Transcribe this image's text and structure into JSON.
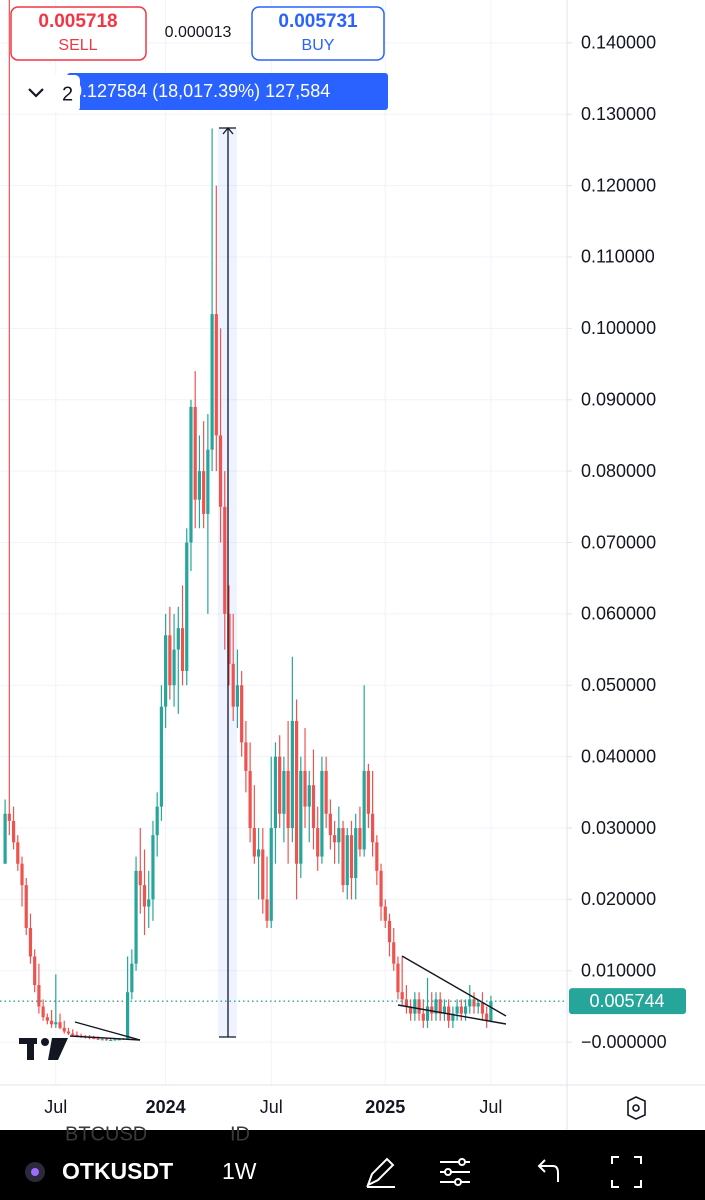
{
  "header": {
    "sell_price": "0.005718",
    "sell_label": "SELL",
    "spread": "0.000013",
    "buy_price": "0.005731",
    "buy_label": "BUY"
  },
  "measure": {
    "dropdown": "2",
    "text": "0.127584 (18,017.39%) 127,584"
  },
  "chart_data": {
    "type": "candlestick",
    "categories": [
      null,
      null,
      null,
      null,
      null,
      null,
      null,
      null,
      null,
      null,
      null,
      null,
      "Jul",
      null,
      null,
      null,
      null,
      null,
      null,
      null,
      null,
      null,
      null,
      null,
      null,
      null,
      null,
      null,
      null,
      null,
      null,
      null,
      null,
      null,
      null,
      null,
      null,
      null,
      "2024",
      null,
      null,
      null,
      null,
      null,
      null,
      null,
      null,
      null,
      null,
      null,
      null,
      null,
      null,
      null,
      null,
      null,
      null,
      null,
      null,
      null,
      null,
      null,
      null,
      "Jul",
      null,
      null,
      null,
      null,
      null,
      null,
      null,
      null,
      null,
      null,
      null,
      null,
      null,
      null,
      null,
      null,
      null,
      null,
      null,
      null,
      null,
      null,
      null,
      null,
      null,
      null,
      "2025",
      null,
      null,
      null,
      null,
      null,
      null,
      null,
      null,
      null,
      null,
      null,
      null,
      null,
      null,
      null,
      null,
      null,
      null,
      null,
      null,
      null,
      null,
      null,
      null,
      "Jul"
    ],
    "open": [
      0.025,
      0.032,
      0.031,
      0.028,
      0.025,
      0.022,
      0.016,
      0.012,
      0.008,
      0.005,
      0.0035,
      0.003,
      0.0025,
      0.0028,
      0.002,
      0.0015,
      0.0012,
      0.001,
      0.0009,
      0.0008,
      0.0007,
      0.0006,
      0.0005,
      0.0004,
      0.0004,
      0.0003,
      0.0003,
      0.0004,
      0.0004,
      0.0005,
      0.007,
      0.011,
      0.024,
      0.022,
      0.019,
      0.02,
      0.029,
      0.033,
      0.047,
      0.057,
      0.05,
      0.055,
      0.058,
      0.052,
      0.07,
      0.089,
      0.076,
      0.08,
      0.074,
      0.083,
      0.102,
      0.085,
      0.075,
      0.06,
      0.053,
      0.047,
      0.05,
      0.042,
      0.038,
      0.03,
      0.026,
      0.027,
      0.02,
      0.017,
      0.03,
      0.04,
      0.032,
      0.038,
      0.03,
      0.045,
      0.025,
      0.038,
      0.033,
      0.036,
      0.03,
      0.026,
      0.038,
      0.032,
      0.029,
      0.028,
      0.03,
      0.022,
      0.029,
      0.023,
      0.03,
      0.027,
      0.038,
      0.032,
      0.028,
      0.024,
      0.019,
      0.017,
      0.014,
      0.011,
      0.007,
      0.006,
      0.005,
      0.004,
      0.006,
      0.004,
      0.003,
      0.005,
      0.004,
      0.006,
      0.004,
      0.005,
      0.003,
      0.004,
      0.005,
      0.004,
      0.005,
      0.006,
      0.005,
      0.0055,
      0.004,
      0.003
    ],
    "high": [
      0.034,
      0.15,
      0.033,
      0.029,
      0.026,
      0.023,
      0.018,
      0.013,
      0.011,
      0.006,
      0.004,
      0.0045,
      0.0095,
      0.004,
      0.003,
      0.002,
      0.0018,
      0.0015,
      0.0012,
      0.001,
      0.001,
      0.0009,
      0.0008,
      0.0007,
      0.0006,
      0.0006,
      0.0005,
      0.0006,
      0.0006,
      0.012,
      0.013,
      0.026,
      0.03,
      0.027,
      0.024,
      0.031,
      0.035,
      0.05,
      0.06,
      0.061,
      0.06,
      0.061,
      0.064,
      0.072,
      0.09,
      0.094,
      0.085,
      0.087,
      0.088,
      0.128,
      0.12,
      0.1,
      0.08,
      0.064,
      0.06,
      0.055,
      0.052,
      0.045,
      0.042,
      0.036,
      0.03,
      0.03,
      0.026,
      0.04,
      0.042,
      0.043,
      0.04,
      0.045,
      0.054,
      0.048,
      0.04,
      0.044,
      0.038,
      0.041,
      0.033,
      0.04,
      0.04,
      0.034,
      0.031,
      0.033,
      0.031,
      0.03,
      0.031,
      0.032,
      0.033,
      0.05,
      0.039,
      0.038,
      0.029,
      0.025,
      0.02,
      0.018,
      0.016,
      0.012,
      0.012,
      0.008,
      0.006,
      0.007,
      0.007,
      0.006,
      0.009,
      0.007,
      0.007,
      0.007,
      0.006,
      0.006,
      0.005,
      0.006,
      0.006,
      0.006,
      0.008,
      0.007,
      0.006,
      0.007,
      0.005,
      0.0065
    ],
    "low": [
      0.025,
      0.029,
      0.027,
      0.024,
      0.019,
      0.015,
      0.011,
      0.007,
      0.004,
      0.003,
      0.0025,
      0.002,
      0.002,
      0.0018,
      0.0012,
      0.001,
      0.0008,
      0.0007,
      0.0006,
      0.0005,
      0.0004,
      0.0004,
      0.0003,
      0.0003,
      0.0002,
      0.0002,
      0.0002,
      0.0003,
      0.0003,
      0.0004,
      0.006,
      0.01,
      0.018,
      0.015,
      0.016,
      0.017,
      0.026,
      0.031,
      0.044,
      0.048,
      0.047,
      0.046,
      0.05,
      0.05,
      0.066,
      0.072,
      0.072,
      0.072,
      0.06,
      0.08,
      0.08,
      0.07,
      0.055,
      0.05,
      0.045,
      0.044,
      0.04,
      0.035,
      0.028,
      0.025,
      0.02,
      0.018,
      0.016,
      0.016,
      0.025,
      0.03,
      0.028,
      0.025,
      0.028,
      0.02,
      0.023,
      0.03,
      0.028,
      0.027,
      0.024,
      0.025,
      0.03,
      0.027,
      0.025,
      0.025,
      0.021,
      0.02,
      0.02,
      0.02,
      0.026,
      0.026,
      0.03,
      0.026,
      0.022,
      0.017,
      0.016,
      0.012,
      0.01,
      0.006,
      0.005,
      0.004,
      0.003,
      0.003,
      0.003,
      0.002,
      0.002,
      0.003,
      0.003,
      0.003,
      0.003,
      0.002,
      0.002,
      0.003,
      0.003,
      0.003,
      0.004,
      0.004,
      0.004,
      0.003,
      0.002,
      0.0028
    ],
    "close": [
      0.032,
      0.031,
      0.028,
      0.025,
      0.022,
      0.016,
      0.012,
      0.008,
      0.005,
      0.0035,
      0.003,
      0.0025,
      0.0028,
      0.002,
      0.0015,
      0.0012,
      0.001,
      0.0009,
      0.0008,
      0.0007,
      0.0006,
      0.0005,
      0.0004,
      0.0004,
      0.0003,
      0.0003,
      0.0004,
      0.0004,
      0.0005,
      0.007,
      0.011,
      0.024,
      0.022,
      0.019,
      0.02,
      0.029,
      0.033,
      0.047,
      0.057,
      0.05,
      0.055,
      0.058,
      0.052,
      0.07,
      0.089,
      0.076,
      0.08,
      0.074,
      0.083,
      0.102,
      0.085,
      0.075,
      0.06,
      0.053,
      0.047,
      0.05,
      0.042,
      0.038,
      0.03,
      0.026,
      0.027,
      0.02,
      0.017,
      0.03,
      0.04,
      0.032,
      0.038,
      0.03,
      0.045,
      0.025,
      0.038,
      0.033,
      0.036,
      0.03,
      0.026,
      0.038,
      0.032,
      0.029,
      0.028,
      0.03,
      0.022,
      0.029,
      0.023,
      0.03,
      0.027,
      0.038,
      0.032,
      0.028,
      0.024,
      0.019,
      0.017,
      0.014,
      0.011,
      0.007,
      0.006,
      0.005,
      0.004,
      0.006,
      0.004,
      0.003,
      0.005,
      0.004,
      0.006,
      0.004,
      0.005,
      0.003,
      0.004,
      0.005,
      0.004,
      0.005,
      0.006,
      0.005,
      0.0055,
      0.004,
      0.003,
      0.005744
    ],
    "up_color": "#26a69a",
    "down_color": "#ef5350",
    "ylim": [
      -0.006,
      0.146
    ],
    "yticks": [
      {
        "value": 0.14,
        "label": "0.140000"
      },
      {
        "value": 0.13,
        "label": "0.130000"
      },
      {
        "value": 0.12,
        "label": "0.120000"
      },
      {
        "value": 0.11,
        "label": "0.110000"
      },
      {
        "value": 0.1,
        "label": "0.100000"
      },
      {
        "value": 0.09,
        "label": "0.090000"
      },
      {
        "value": 0.08,
        "label": "0.080000"
      },
      {
        "value": 0.07,
        "label": "0.070000"
      },
      {
        "value": 0.06,
        "label": "0.060000"
      },
      {
        "value": 0.05,
        "label": "0.050000"
      },
      {
        "value": 0.04,
        "label": "0.040000"
      },
      {
        "value": 0.03,
        "label": "0.030000"
      },
      {
        "value": 0.02,
        "label": "0.020000"
      },
      {
        "value": 0.01,
        "label": "0.010000"
      },
      {
        "value": 0,
        "label": "−0.000000"
      }
    ],
    "grid": true,
    "last_price": 0.005744,
    "last_price_color": "#26a69a"
  },
  "footer": {
    "ghost_symbol": "BTCUSD",
    "ghost_id": "ID",
    "symbol": "OTKUSDT",
    "interval": "1W"
  }
}
